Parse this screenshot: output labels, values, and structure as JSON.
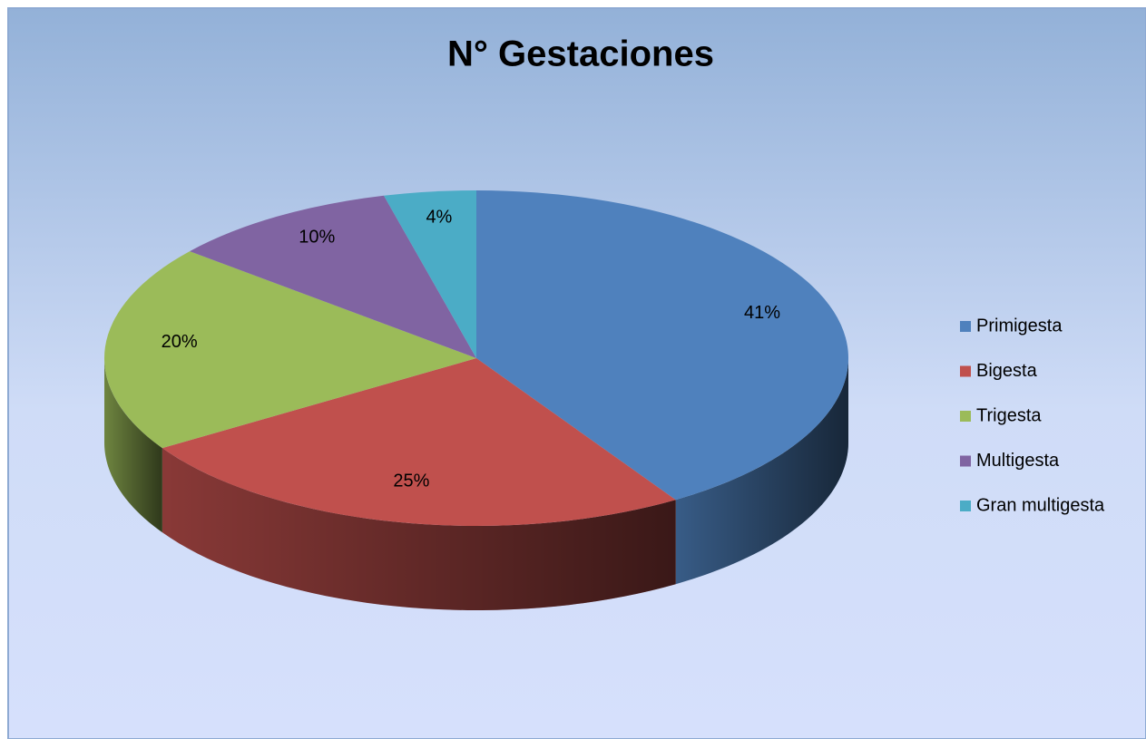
{
  "chart_data": {
    "type": "pie",
    "title": "N° Gestaciones",
    "categories": [
      "Primigesta",
      "Bigesta",
      "Trigesta",
      "Multigesta",
      "Gran multigesta"
    ],
    "values": [
      41,
      25,
      20,
      10,
      4
    ],
    "value_labels": [
      "41%",
      "25%",
      "20%",
      "10%",
      "4%"
    ],
    "colors": [
      "#4f81bd",
      "#c0504d",
      "#9bbb59",
      "#8064a2",
      "#4bacc6"
    ],
    "legend": "right"
  }
}
